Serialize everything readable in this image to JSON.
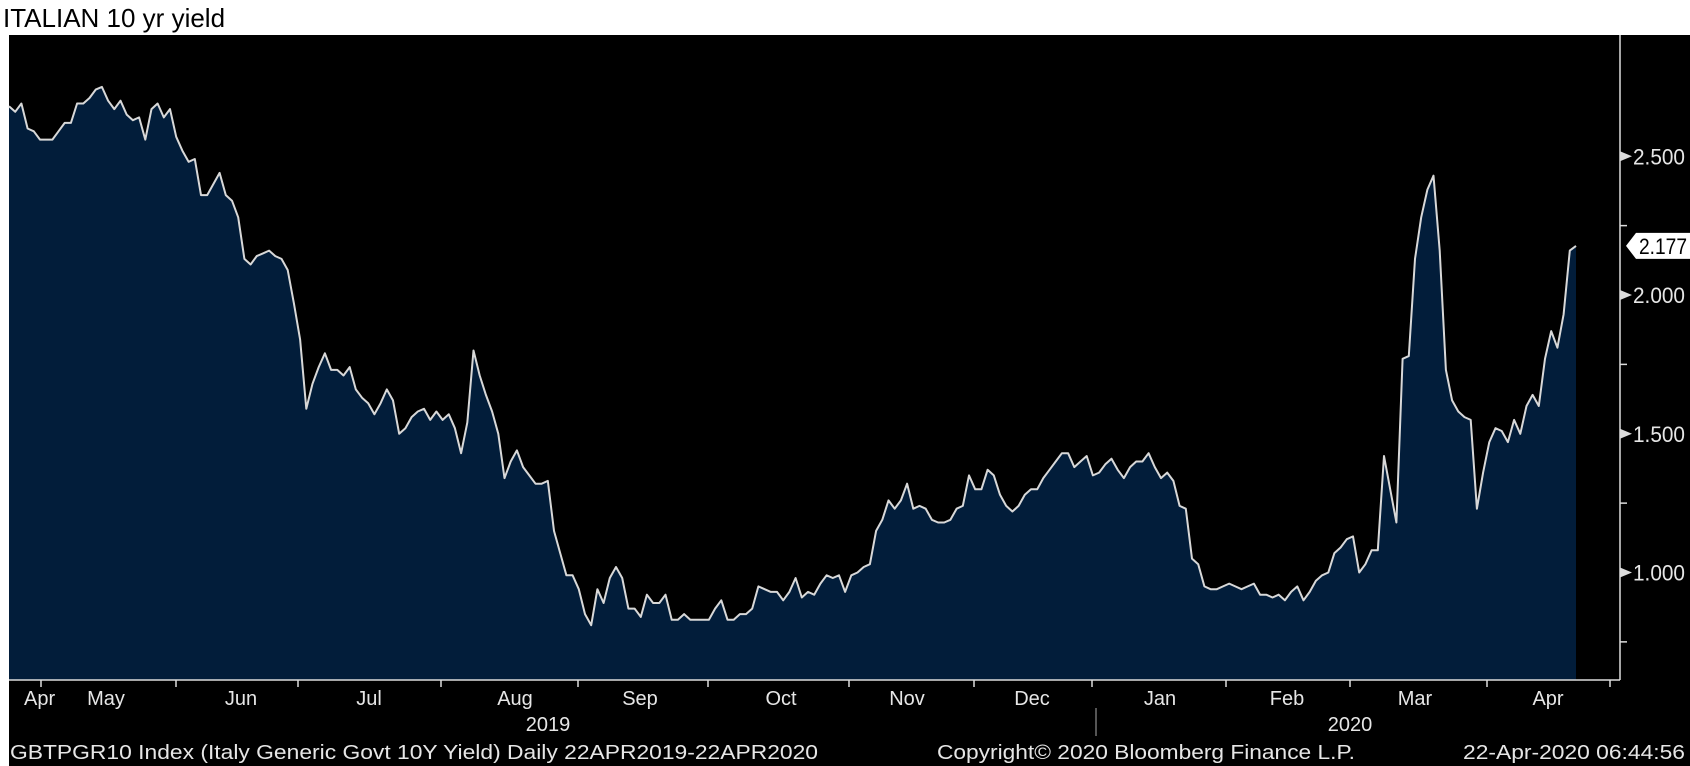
{
  "title": "ITALIAN 10 yr yield",
  "colors": {
    "background": "#000000",
    "fill": "#021d3a",
    "line": "#d8d8d8",
    "text": "#e6e6e6"
  },
  "chart_data": {
    "type": "area",
    "title": "ITALIAN 10 yr yield",
    "series": [
      {
        "name": "GBTPGR10 Index",
        "last_value": "2.177",
        "values": [
          2.68,
          2.66,
          2.69,
          2.6,
          2.59,
          2.56,
          2.56,
          2.56,
          2.59,
          2.62,
          2.62,
          2.69,
          2.69,
          2.71,
          2.74,
          2.75,
          2.7,
          2.67,
          2.7,
          2.65,
          2.63,
          2.64,
          2.56,
          2.67,
          2.69,
          2.64,
          2.67,
          2.57,
          2.52,
          2.48,
          2.49,
          2.36,
          2.36,
          2.4,
          2.44,
          2.36,
          2.34,
          2.28,
          2.13,
          2.11,
          2.14,
          2.15,
          2.16,
          2.14,
          2.13,
          2.09,
          1.97,
          1.84,
          1.59,
          1.68,
          1.74,
          1.79,
          1.73,
          1.73,
          1.71,
          1.74,
          1.66,
          1.63,
          1.61,
          1.57,
          1.61,
          1.66,
          1.62,
          1.5,
          1.52,
          1.56,
          1.58,
          1.59,
          1.55,
          1.58,
          1.55,
          1.57,
          1.52,
          1.43,
          1.54,
          1.8,
          1.71,
          1.64,
          1.58,
          1.5,
          1.34,
          1.4,
          1.44,
          1.38,
          1.35,
          1.32,
          1.32,
          1.33,
          1.15,
          1.07,
          0.99,
          0.99,
          0.94,
          0.85,
          0.81,
          0.94,
          0.89,
          0.98,
          1.02,
          0.98,
          0.87,
          0.87,
          0.84,
          0.92,
          0.89,
          0.89,
          0.92,
          0.83,
          0.83,
          0.85,
          0.83,
          0.83,
          0.83,
          0.83,
          0.87,
          0.9,
          0.83,
          0.83,
          0.85,
          0.85,
          0.87,
          0.95,
          0.94,
          0.93,
          0.93,
          0.9,
          0.93,
          0.98,
          0.91,
          0.93,
          0.92,
          0.96,
          0.99,
          0.98,
          0.99,
          0.93,
          0.99,
          1.0,
          1.02,
          1.03,
          1.15,
          1.19,
          1.26,
          1.23,
          1.26,
          1.32,
          1.23,
          1.24,
          1.23,
          1.19,
          1.18,
          1.18,
          1.19,
          1.23,
          1.24,
          1.35,
          1.3,
          1.3,
          1.37,
          1.35,
          1.28,
          1.24,
          1.22,
          1.24,
          1.28,
          1.3,
          1.3,
          1.34,
          1.37,
          1.4,
          1.43,
          1.43,
          1.38,
          1.4,
          1.42,
          1.35,
          1.36,
          1.39,
          1.41,
          1.37,
          1.34,
          1.38,
          1.4,
          1.4,
          1.43,
          1.38,
          1.34,
          1.36,
          1.33,
          1.24,
          1.23,
          1.05,
          1.03,
          0.95,
          0.94,
          0.94,
          0.95,
          0.96,
          0.95,
          0.94,
          0.95,
          0.96,
          0.92,
          0.92,
          0.91,
          0.92,
          0.9,
          0.93,
          0.95,
          0.9,
          0.93,
          0.97,
          0.99,
          1.0,
          1.07,
          1.09,
          1.12,
          1.13,
          1.0,
          1.03,
          1.08,
          1.08,
          1.42,
          1.3,
          1.18,
          1.77,
          1.78,
          2.13,
          2.28,
          2.38,
          2.43,
          2.16,
          1.73,
          1.62,
          1.58,
          1.56,
          1.55,
          1.23,
          1.36,
          1.47,
          1.52,
          1.51,
          1.47,
          1.55,
          1.5,
          1.6,
          1.64,
          1.6,
          1.77,
          1.87,
          1.81,
          1.93,
          2.16,
          2.177
        ]
      }
    ],
    "ylim": [
      0.61,
      2.94
    ],
    "y_ticks": [
      {
        "value": 1.0,
        "label": "1.000"
      },
      {
        "value": 1.5,
        "label": "1.500"
      },
      {
        "value": 2.0,
        "label": "2.000"
      },
      {
        "value": 2.5,
        "label": "2.500"
      }
    ],
    "y_minor_ticks": [
      0.75,
      1.25,
      1.75,
      2.25
    ],
    "x_range": [
      "22APR2019",
      "22APR2020"
    ],
    "x_month_labels": [
      "Apr",
      "May",
      "Jun",
      "Jul",
      "Aug",
      "Sep",
      "Oct",
      "Nov",
      "Dec",
      "Jan",
      "Feb",
      "Mar",
      "Apr"
    ],
    "x_year_labels": [
      "2019",
      "2020"
    ],
    "axis_position": "right",
    "grid": false
  },
  "footer": {
    "security": "GBTPGR10 Index (Italy Generic Govt 10Y Yield)  Daily 22APR2019-22APR2020",
    "copyright": "Copyright© 2020 Bloomberg Finance L.P.",
    "timestamp": "22-Apr-2020 06:44:56"
  }
}
